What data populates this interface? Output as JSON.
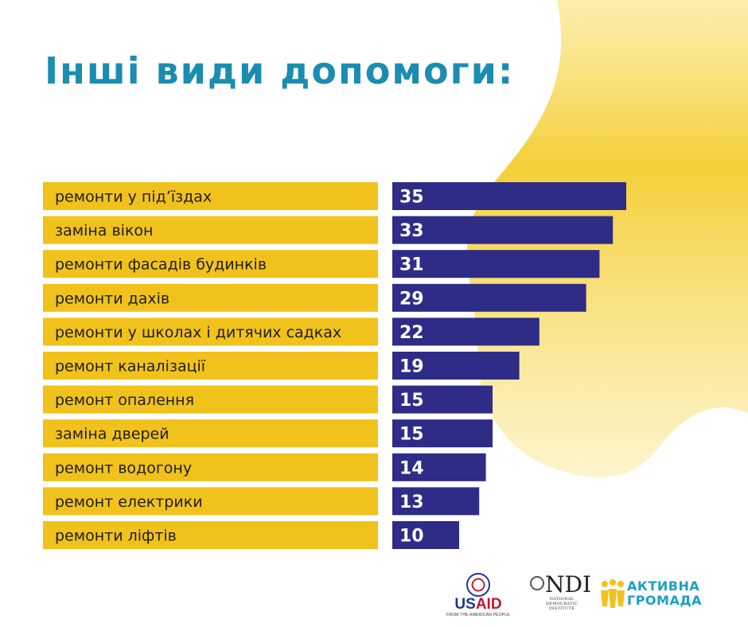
{
  "title": "Інші види допомоги:",
  "colors": {
    "title": "#1a8db0",
    "label_bar": "#f1c21b",
    "value_bar": "#2e2c86",
    "value_text": "#ffffff",
    "blob": "#f5cf3a"
  },
  "chart_data": {
    "type": "bar",
    "orientation": "horizontal",
    "categories": [
      "ремонти у під’їздах",
      "заміна вікон",
      "ремонти фасадів будинків",
      "ремонти дахів",
      "ремонти у школах і дитячих садках",
      "ремонт каналізації",
      "ремонт опалення",
      "заміна дверей",
      "ремонт водогону",
      "ремонт електрики",
      "ремонти ліфтів"
    ],
    "values": [
      35,
      33,
      31,
      29,
      22,
      19,
      15,
      15,
      14,
      13,
      10
    ],
    "data_labels": [
      "35",
      "33",
      "31",
      "29",
      "22",
      "19",
      "15",
      "15",
      "14",
      "13",
      "10"
    ],
    "title": "Інші види допомоги:",
    "xlabel": "",
    "ylabel": "",
    "grid": false,
    "legend": "none"
  },
  "logos": {
    "usaid": {
      "word_us": "US",
      "word_aid": "AID",
      "tagline": "FROM THE AMERICAN PEOPLE"
    },
    "ndi": {
      "mark": "NDI",
      "subtitle_lines": [
        "NATIONAL",
        "DEMOCRATIC",
        "INSTITUTE"
      ]
    },
    "aktyvna_hromada": {
      "line1": "АКТИВНА",
      "line2": "ГРОМАДА"
    }
  }
}
